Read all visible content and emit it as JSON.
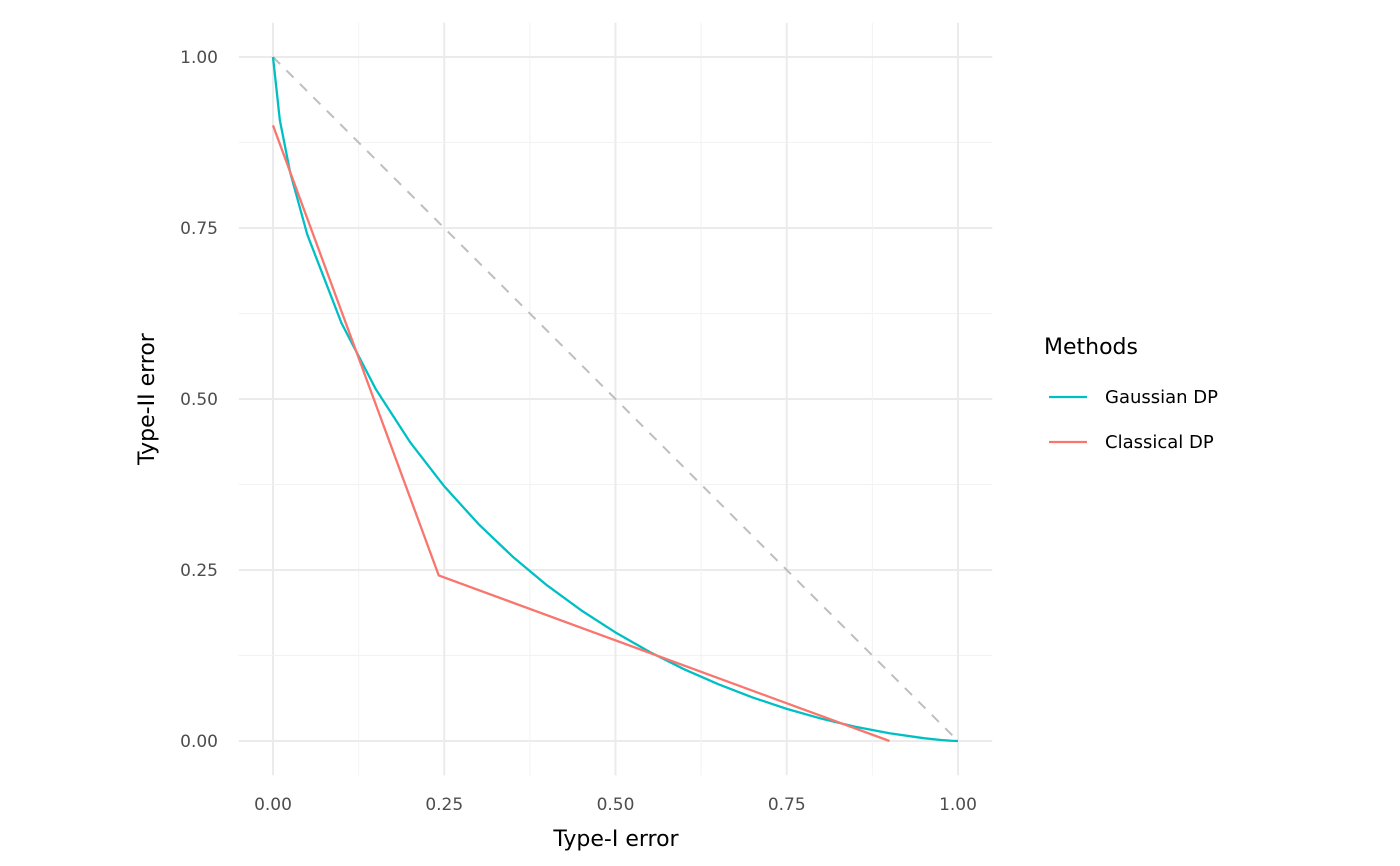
{
  "chart_data": {
    "type": "line",
    "title": "",
    "xlabel": "Type-I error",
    "ylabel": "Type-II error",
    "xlim": [
      -0.05,
      1.05
    ],
    "ylim": [
      -0.05,
      1.05
    ],
    "grid": true,
    "xticks": [
      0,
      0.25,
      0.5,
      0.75,
      1
    ],
    "xtick_labels": [
      "0.00",
      "0.25",
      "0.50",
      "0.75",
      "1.00"
    ],
    "yticks": [
      0,
      0.25,
      0.5,
      0.75,
      1
    ],
    "ytick_labels": [
      "0.00",
      "0.25",
      "0.50",
      "0.75",
      "1.00"
    ],
    "legend": {
      "title": "Methods",
      "placement": "right"
    },
    "reference_line": {
      "x": [
        0,
        1
      ],
      "y": [
        1,
        0
      ],
      "color": "#BEBEBE",
      "style": "dashed"
    },
    "series": [
      {
        "name": "Gaussian DP",
        "color": "#00BFC4",
        "x": [
          0,
          0.01,
          0.025,
          0.05,
          0.1,
          0.15,
          0.2,
          0.25,
          0.3,
          0.35,
          0.4,
          0.45,
          0.5,
          0.55,
          0.6,
          0.65,
          0.7,
          0.75,
          0.8,
          0.85,
          0.9,
          0.95,
          0.975,
          0.99,
          1
        ],
        "y": [
          1,
          0.9076,
          0.8315,
          0.7405,
          0.6109,
          0.5145,
          0.4371,
          0.3724,
          0.3172,
          0.2694,
          0.2276,
          0.191,
          0.1587,
          0.1301,
          0.105,
          0.083,
          0.0637,
          0.047,
          0.0328,
          0.0209,
          0.0113,
          0.0041,
          0.0015,
          0.0004,
          0
        ]
      },
      {
        "name": "Classical DP",
        "color": "#F8766D",
        "x": [
          0,
          0.242,
          0.9
        ],
        "y": [
          0.9,
          0.242,
          0
        ]
      }
    ]
  }
}
